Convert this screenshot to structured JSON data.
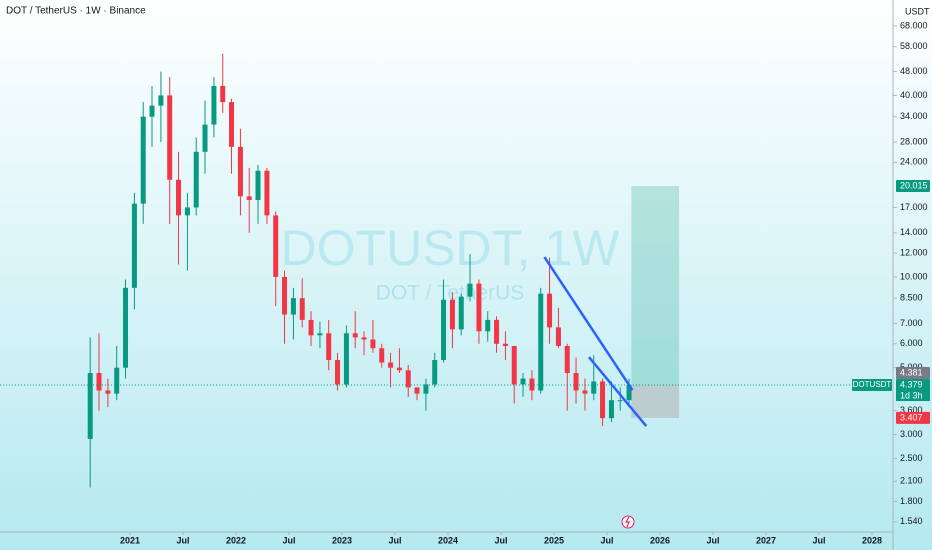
{
  "chart_data": {
    "type": "candlestick",
    "title": "DOT / TetherUS · 1W · Binance",
    "watermark": "DOTUSDT, 1W",
    "watermark_subtitle": "DOT / TetherUS",
    "y_unit": "USDT",
    "log_scale": true,
    "up_color": "#089981",
    "down_color": "#f23645",
    "x": [
      2020.625,
      2020.708,
      2020.792,
      2020.875,
      2020.958,
      2021.042,
      2021.125,
      2021.208,
      2021.292,
      2021.375,
      2021.458,
      2021.542,
      2021.625,
      2021.708,
      2021.792,
      2021.875,
      2021.958,
      2022.042,
      2022.125,
      2022.208,
      2022.292,
      2022.375,
      2022.458,
      2022.542,
      2022.625,
      2022.708,
      2022.792,
      2022.875,
      2022.958,
      2023.042,
      2023.125,
      2023.208,
      2023.292,
      2023.375,
      2023.458,
      2023.542,
      2023.625,
      2023.708,
      2023.792,
      2023.875,
      2023.958,
      2024.042,
      2024.125,
      2024.208,
      2024.292,
      2024.375,
      2024.458,
      2024.542,
      2024.625,
      2024.708,
      2024.792,
      2024.875,
      2024.958,
      2025.042,
      2025.125,
      2025.208,
      2025.292,
      2025.375,
      2025.458,
      2025.542,
      2025.625,
      2025.708
    ],
    "open": [
      2.9,
      4.8,
      4.2,
      4.1,
      5.0,
      9.2,
      17.5,
      34,
      37,
      40,
      21,
      16,
      17,
      26,
      32,
      43,
      38,
      27,
      18.5,
      18,
      22.5,
      16,
      10,
      7.5,
      8.5,
      7.2,
      6.4,
      6.5,
      5.3,
      4.4,
      6.5,
      6.3,
      6.2,
      5.8,
      5.2,
      5.0,
      4.9,
      4.3,
      4.1,
      4.4,
      5.3,
      8.4,
      6.7,
      8.6,
      9.5,
      6.6,
      7.2,
      6.0,
      5.9,
      4.4,
      4.6,
      4.2,
      8.8,
      6.8,
      5.9,
      4.8,
      4.2,
      4.1,
      4.5,
      3.4,
      3.9,
      3.9
    ],
    "high": [
      6.3,
      6.5,
      4.6,
      5.9,
      9.8,
      19,
      38,
      43,
      48,
      46,
      26,
      19,
      29,
      38.5,
      46,
      55,
      39,
      31,
      23,
      23.5,
      23,
      16.5,
      10.5,
      9.2,
      9.9,
      7.7,
      7.1,
      7.2,
      5.6,
      6.9,
      7.7,
      6.6,
      7.2,
      6.0,
      5.6,
      5.8,
      5.1,
      4.3,
      4.6,
      5.6,
      9.8,
      8.9,
      8.8,
      11.9,
      9.8,
      7.7,
      7.4,
      6.6,
      5.9,
      4.8,
      4.9,
      9.2,
      11.6,
      7.9,
      6.0,
      5.4,
      4.6,
      5.5,
      4.6,
      4.5,
      4.3,
      4.6
    ],
    "low": [
      2.0,
      3.6,
      3.7,
      3.9,
      4.6,
      7.8,
      15,
      27,
      28,
      15,
      11,
      10.5,
      16,
      22,
      29,
      35,
      22,
      16,
      14,
      15,
      15,
      8,
      6,
      6.2,
      6.8,
      5.9,
      5.8,
      4.9,
      4.2,
      4.3,
      5.8,
      5.5,
      5.6,
      5.0,
      4.3,
      4.8,
      4.0,
      3.9,
      3.6,
      4.3,
      5.2,
      5.8,
      6.4,
      8.3,
      6.0,
      6.1,
      5.6,
      5.3,
      3.8,
      4.0,
      3.9,
      4.1,
      6.0,
      5.8,
      3.6,
      3.8,
      3.6,
      3.9,
      3.2,
      3.3,
      3.6,
      3.7
    ],
    "close": [
      4.8,
      4.2,
      4.1,
      5.0,
      9.2,
      17.5,
      34,
      37,
      40,
      21,
      16,
      17,
      26,
      32,
      43,
      38,
      27,
      18.5,
      18,
      22.5,
      16,
      10,
      7.5,
      8.5,
      7.2,
      6.4,
      6.5,
      5.3,
      4.4,
      6.5,
      6.3,
      6.2,
      5.8,
      5.2,
      5.0,
      4.9,
      4.3,
      4.1,
      4.4,
      5.3,
      8.4,
      6.7,
      8.6,
      9.5,
      6.6,
      7.2,
      6.0,
      5.9,
      4.4,
      4.6,
      4.2,
      8.8,
      6.8,
      5.9,
      4.8,
      4.2,
      4.1,
      4.5,
      3.4,
      3.9,
      3.9,
      4.379
    ],
    "xlim": [
      2019.774,
      2028.198
    ],
    "xticks": [
      {
        "value": 2021,
        "label": "2021"
      },
      {
        "value": 2021.5,
        "label": "Jul"
      },
      {
        "value": 2022,
        "label": "2022"
      },
      {
        "value": 2022.5,
        "label": "Jul"
      },
      {
        "value": 2023,
        "label": "2023"
      },
      {
        "value": 2023.5,
        "label": "Jul"
      },
      {
        "value": 2024,
        "label": "2024"
      },
      {
        "value": 2024.5,
        "label": "Jul"
      },
      {
        "value": 2025,
        "label": "2025"
      },
      {
        "value": 2025.5,
        "label": "Jul"
      },
      {
        "value": 2026,
        "label": "2026"
      },
      {
        "value": 2026.5,
        "label": "Jul"
      },
      {
        "value": 2027,
        "label": "2027"
      },
      {
        "value": 2027.5,
        "label": "Jul"
      },
      {
        "value": 2028,
        "label": "2028"
      }
    ],
    "ylim": [
      1.425,
      82.9
    ],
    "yticks": [
      {
        "value": 68,
        "label": "68.000"
      },
      {
        "value": 58,
        "label": "58.000"
      },
      {
        "value": 48,
        "label": "48.000"
      },
      {
        "value": 40,
        "label": "40.000"
      },
      {
        "value": 34,
        "label": "34.000"
      },
      {
        "value": 28,
        "label": "28.000"
      },
      {
        "value": 24,
        "label": "24.000"
      },
      {
        "value": 17,
        "label": "17.000"
      },
      {
        "value": 14,
        "label": "14.000"
      },
      {
        "value": 12,
        "label": "12.000"
      },
      {
        "value": 10,
        "label": "10.000"
      },
      {
        "value": 8.5,
        "label": "8.500"
      },
      {
        "value": 7,
        "label": "7.000"
      },
      {
        "value": 6,
        "label": "6.000"
      },
      {
        "value": 5,
        "label": "5.000"
      },
      {
        "value": 3.6,
        "label": "3.600"
      },
      {
        "value": 3,
        "label": "3.000"
      },
      {
        "value": 2.5,
        "label": "2.500"
      },
      {
        "value": 2.1,
        "label": "2.100"
      },
      {
        "value": 1.8,
        "label": "1.800"
      },
      {
        "value": 1.54,
        "label": "1.540"
      }
    ],
    "last_price": {
      "symbol": "DOTUSDT",
      "value": 4.379,
      "value_label": "4.379",
      "countdown": "1d 3h",
      "color": "#089981"
    },
    "position": {
      "x": [
        2025.73,
        2026.18
      ],
      "entry": 4.381,
      "entry_label": "4.381",
      "target": 20.015,
      "target_label": "20.015",
      "stop": 3.407,
      "stop_label": "3.407",
      "target_color": "#089981",
      "stop_color": "#f23645"
    },
    "trendlines": [
      {
        "x": [
          2024.91,
          2025.74
        ],
        "y": [
          11.64,
          4.21
        ],
        "color": "#2962ff"
      },
      {
        "x": [
          2025.33,
          2025.87
        ],
        "y": [
          5.42,
          3.2
        ],
        "color": "#2962ff"
      }
    ]
  }
}
